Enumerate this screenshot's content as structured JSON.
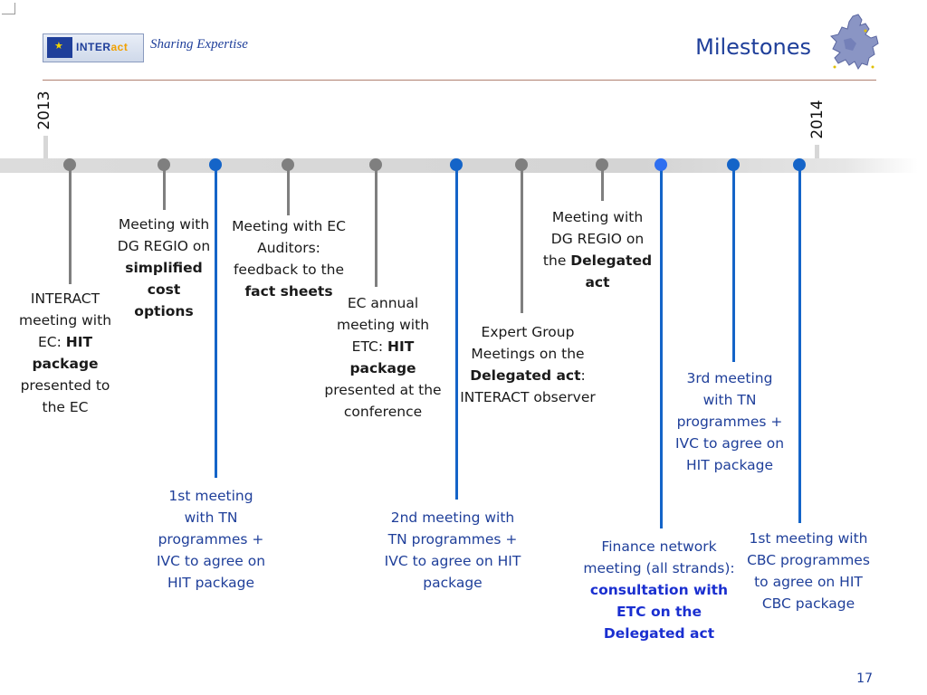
{
  "header": {
    "logo_text_1": "INTER",
    "logo_text_2": "act",
    "tagline": "Sharing Expertise",
    "title": "Milestones"
  },
  "timeline": {
    "start_year": "2013",
    "end_year": "2014"
  },
  "milestones": [
    {
      "pre": "INTERACT meeting with EC: ",
      "bold": "HIT package",
      "post": " presented to the EC"
    },
    {
      "pre": "Meeting with DG REGIO on ",
      "bold": "simplified cost options",
      "post": ""
    },
    {
      "pre": "1st meeting with TN programmes + IVC to agree on HIT package",
      "bold": "",
      "post": ""
    },
    {
      "pre": "Meeting with EC Auditors: feedback to the ",
      "bold": "fact sheets",
      "post": ""
    },
    {
      "pre": "EC annual meeting with ETC: ",
      "bold": "HIT package",
      "post": " presented at the conference"
    },
    {
      "pre": "2nd meeting with TN programmes + IVC to agree on HIT package",
      "bold": "",
      "post": ""
    },
    {
      "pre": "Expert Group Meetings on the ",
      "bold": "Delegated act",
      "post": ": INTERACT observer"
    },
    {
      "pre": "Meeting with DG REGIO on the ",
      "bold": "Delegated act",
      "post": ""
    },
    {
      "pre": "Finance network meeting (all strands): ",
      "bold": "consultation with ETC on the Delegated act",
      "post": ""
    },
    {
      "pre": "3rd meeting with TN programmes + IVC to agree on HIT package",
      "bold": "",
      "post": ""
    },
    {
      "pre": "1st meeting with CBC programmes to agree on HIT CBC package",
      "bold": "",
      "post": ""
    }
  ],
  "page_number": "17",
  "colors": {
    "accent_blue": "#1f3f9a",
    "node_blue": "#1464c8",
    "node_grey": "#7f7f7f",
    "highlight_blue": "#1a2fd0"
  }
}
